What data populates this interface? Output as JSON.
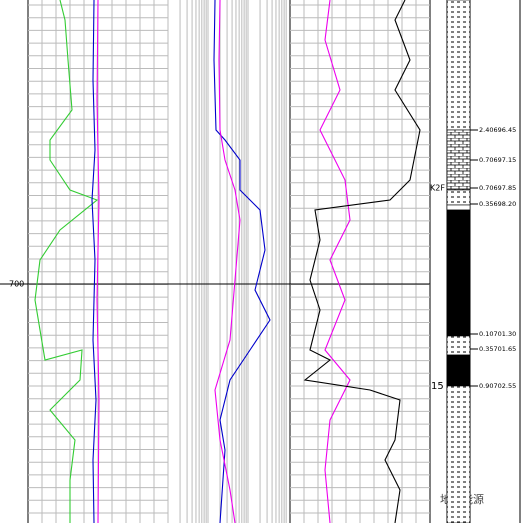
{
  "depth_label": "700",
  "formation": "K2F",
  "layer_number": "15",
  "boundaries": [
    "2.40696.45",
    "0.70697.15",
    "0.70697.85",
    "0.35698.20",
    "0.10701.30",
    "0.35701.65",
    "0.90702.55"
  ],
  "watermark": "地宝能源"
}
